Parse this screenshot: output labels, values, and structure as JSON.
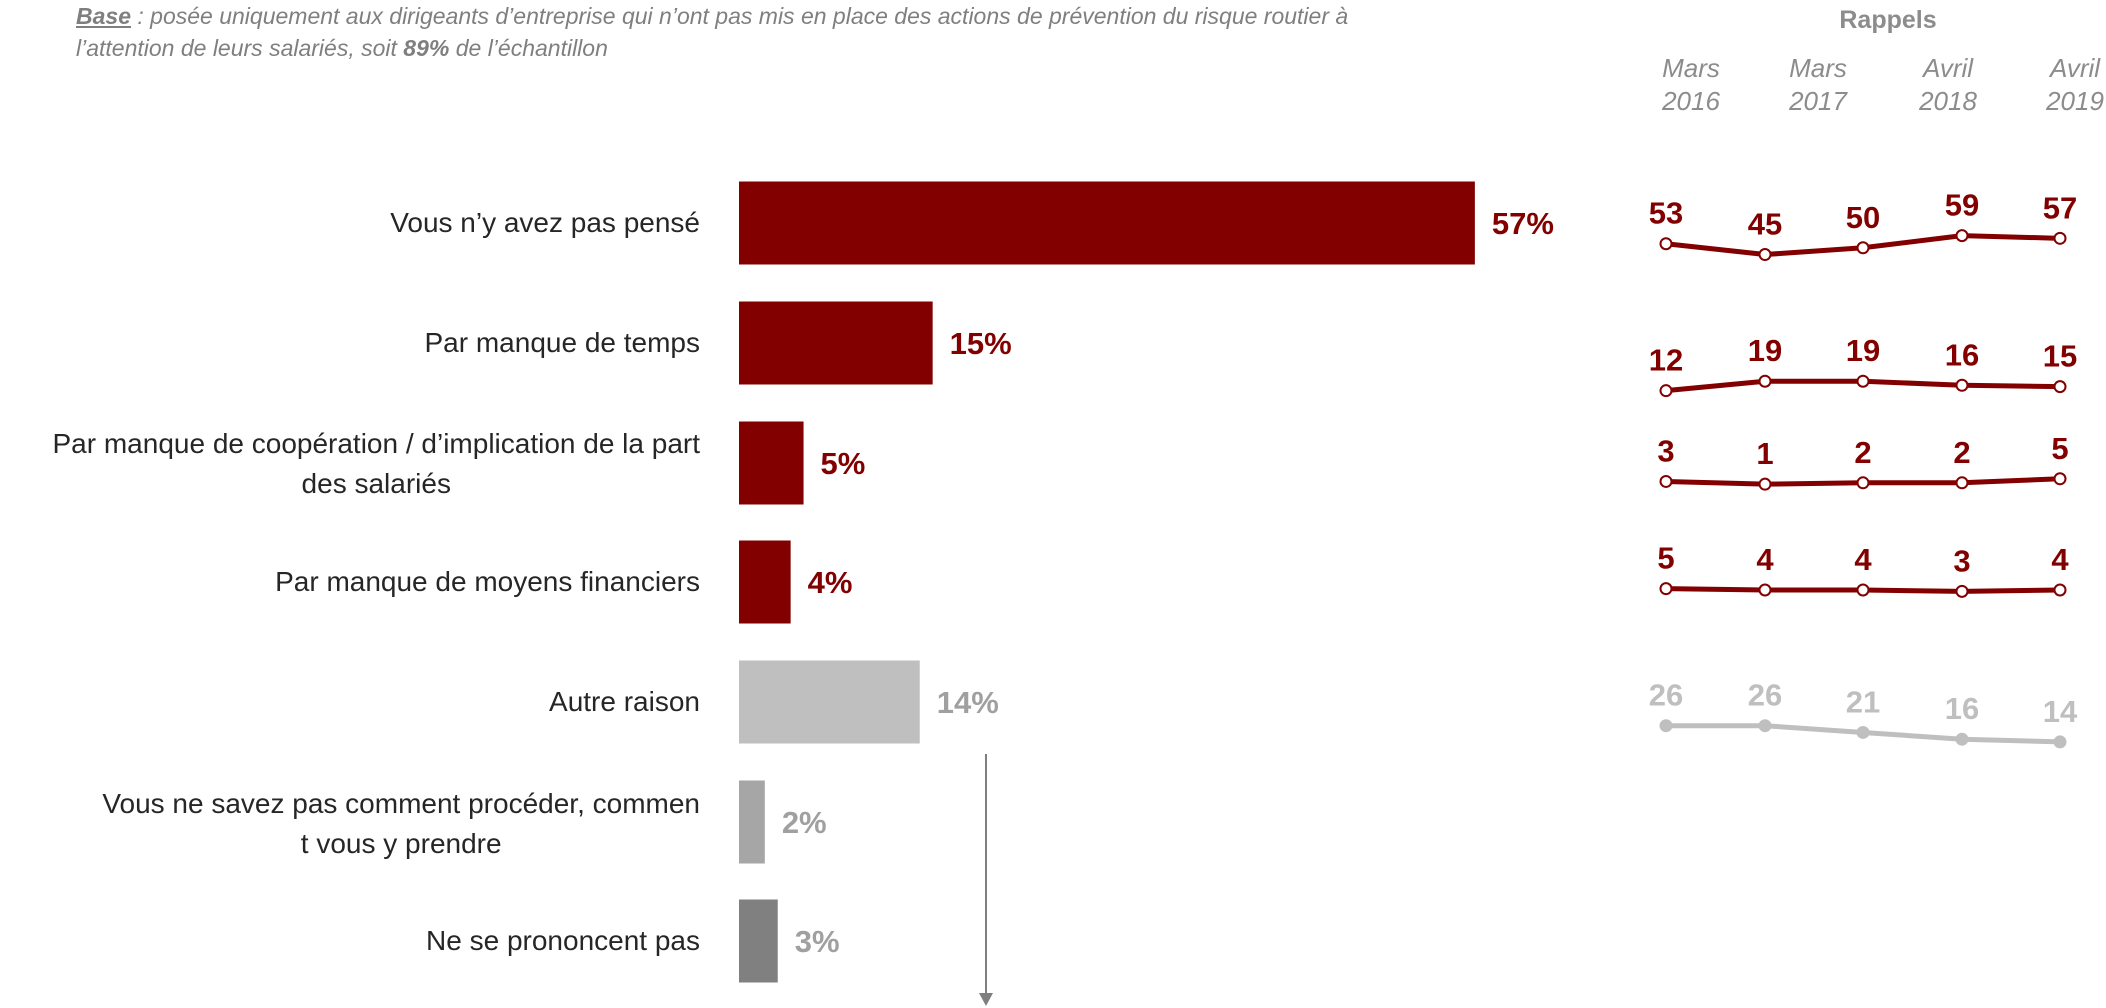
{
  "base_note": {
    "label": "Base",
    "text_1": " : posée uniquement aux dirigeants d’entreprise qui n’ont pas mis en place des actions de prévention du risque routier à l’attention de leurs salariés, soit ",
    "percent": "89%",
    "text_2": " de l’échantillon"
  },
  "rappels": {
    "title": "Rappels",
    "periods": [
      {
        "month": "Mars",
        "year": "2016"
      },
      {
        "month": "Mars",
        "year": "2017"
      },
      {
        "month": "Avril",
        "year": "2018"
      },
      {
        "month": "Avril",
        "year": "2019"
      }
    ]
  },
  "colors": {
    "dark_red": "#820000",
    "light_grey": "#bfbfbf",
    "mid_grey": "#a6a6a6",
    "dark_grey": "#808080",
    "pct_grey": "#a0a0a0",
    "arrow": "#7f7f7f"
  },
  "chart_data": [
    {
      "type": "bar",
      "orientation": "horizontal",
      "categories": [
        "Vous n’y avez pas pensé",
        "Par manque de temps",
        "Par manque de coopération / d’implication de la part des salariés",
        "Par manque de moyens financiers",
        "Autre raison",
        "Vous ne savez pas comment procéder, comment vous y prendre",
        "Ne se prononcent pas"
      ],
      "values": [
        57,
        15,
        5,
        4,
        14,
        2,
        3
      ],
      "value_labels": [
        "57%",
        "15%",
        "5%",
        "4%",
        "14%",
        "2%",
        "3%"
      ],
      "bar_colors": [
        "#820000",
        "#820000",
        "#820000",
        "#820000",
        "#bfbfbf",
        "#a6a6a6",
        "#808080"
      ],
      "label_colors": [
        "#820000",
        "#820000",
        "#820000",
        "#820000",
        "#a0a0a0",
        "#a0a0a0",
        "#a0a0a0"
      ]
    },
    {
      "type": "line",
      "title": "Rappels",
      "series": [
        {
          "values": [
            53,
            45,
            50,
            59,
            57
          ],
          "color": "#820000"
        },
        {
          "values": [
            12,
            19,
            19,
            16,
            15
          ],
          "color": "#820000"
        },
        {
          "values": [
            3,
            1,
            2,
            2,
            5
          ],
          "color": "#820000"
        },
        {
          "values": [
            5,
            4,
            4,
            3,
            4
          ],
          "color": "#820000"
        },
        {
          "values": [
            26,
            26,
            21,
            16,
            14
          ],
          "color": "#bfbfbf"
        }
      ]
    }
  ]
}
